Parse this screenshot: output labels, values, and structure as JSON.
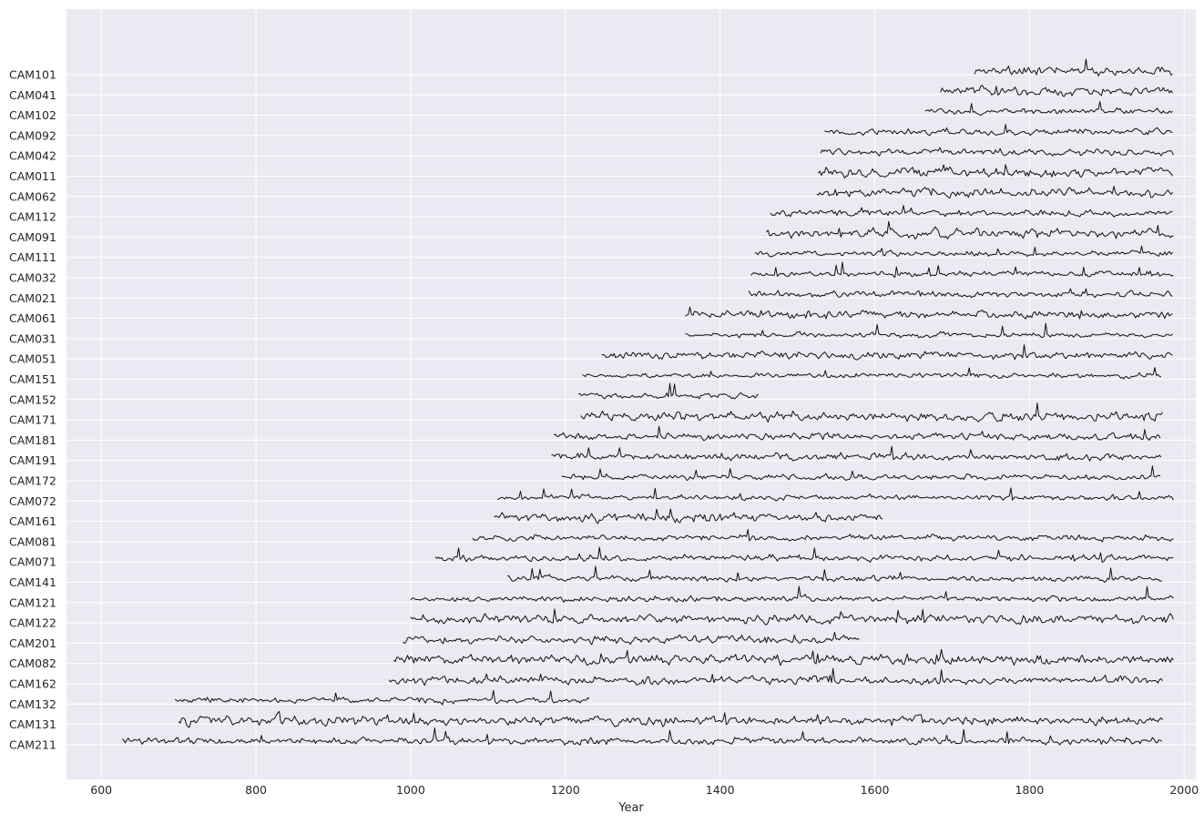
{
  "chart_data": {
    "type": "line",
    "title": "",
    "xlabel": "Year",
    "ylabel": "",
    "xlim": [
      555,
      2015
    ],
    "xticks": [
      600,
      800,
      1000,
      1200,
      1400,
      1600,
      1800,
      2000
    ],
    "grid": true,
    "legend": "none",
    "colors": {
      "background": "#eaeaf2",
      "grid": "#ffffff",
      "line": "#111111"
    },
    "series": [
      {
        "name": "CAM101",
        "start": 1729,
        "end": 1986
      },
      {
        "name": "CAM041",
        "start": 1685,
        "end": 1986
      },
      {
        "name": "CAM102",
        "start": 1665,
        "end": 1986
      },
      {
        "name": "CAM092",
        "start": 1535,
        "end": 1986
      },
      {
        "name": "CAM042",
        "start": 1530,
        "end": 1986
      },
      {
        "name": "CAM011",
        "start": 1527,
        "end": 1986
      },
      {
        "name": "CAM062",
        "start": 1525,
        "end": 1986
      },
      {
        "name": "CAM112",
        "start": 1465,
        "end": 1986
      },
      {
        "name": "CAM091",
        "start": 1460,
        "end": 1986
      },
      {
        "name": "CAM111",
        "start": 1445,
        "end": 1986
      },
      {
        "name": "CAM032",
        "start": 1440,
        "end": 1986
      },
      {
        "name": "CAM021",
        "start": 1437,
        "end": 1986
      },
      {
        "name": "CAM061",
        "start": 1355,
        "end": 1986
      },
      {
        "name": "CAM031",
        "start": 1355,
        "end": 1986
      },
      {
        "name": "CAM051",
        "start": 1247,
        "end": 1986
      },
      {
        "name": "CAM151",
        "start": 1222,
        "end": 1970
      },
      {
        "name": "CAM152",
        "start": 1217,
        "end": 1450
      },
      {
        "name": "CAM171",
        "start": 1220,
        "end": 1972
      },
      {
        "name": "CAM181",
        "start": 1185,
        "end": 1970
      },
      {
        "name": "CAM191",
        "start": 1182,
        "end": 1970
      },
      {
        "name": "CAM172",
        "start": 1195,
        "end": 1970
      },
      {
        "name": "CAM072",
        "start": 1112,
        "end": 1986
      },
      {
        "name": "CAM161",
        "start": 1108,
        "end": 1610
      },
      {
        "name": "CAM081",
        "start": 1080,
        "end": 1986
      },
      {
        "name": "CAM071",
        "start": 1032,
        "end": 1986
      },
      {
        "name": "CAM141",
        "start": 1125,
        "end": 1972
      },
      {
        "name": "CAM121",
        "start": 1000,
        "end": 1986
      },
      {
        "name": "CAM122",
        "start": 1000,
        "end": 1986
      },
      {
        "name": "CAM201",
        "start": 990,
        "end": 1580
      },
      {
        "name": "CAM082",
        "start": 978,
        "end": 1986
      },
      {
        "name": "CAM162",
        "start": 972,
        "end": 1972
      },
      {
        "name": "CAM132",
        "start": 695,
        "end": 1232
      },
      {
        "name": "CAM131",
        "start": 700,
        "end": 1972
      },
      {
        "name": "CAM211",
        "start": 627,
        "end": 1972
      }
    ]
  }
}
